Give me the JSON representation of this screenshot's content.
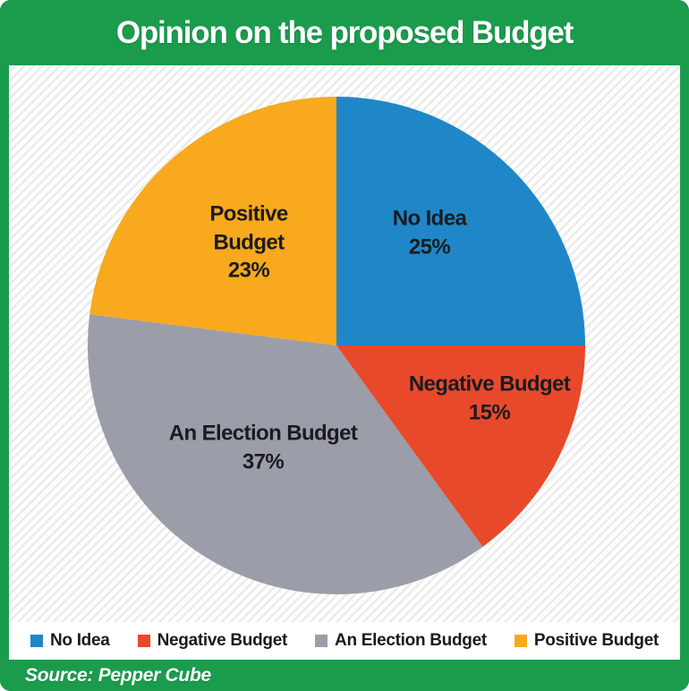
{
  "header": {
    "title": "Opinion on the proposed Budget"
  },
  "chart_data": {
    "type": "pie",
    "title": "Opinion on the proposed Budget",
    "categories": [
      "No Idea",
      "Negative Budget",
      "An Election Budget",
      "Positive Budget"
    ],
    "values": [
      25,
      15,
      37,
      23
    ],
    "units": "%",
    "colors": [
      "#1F87C8",
      "#E8492B",
      "#9B9DA8",
      "#F8A91D"
    ],
    "start_angle_deg": 0,
    "direction": "clockwise",
    "legend_position": "bottom",
    "source": "Source: Pepper Cube",
    "slice_labels": [
      {
        "name": "No Idea",
        "pct": "25%"
      },
      {
        "name": "Negative Budget",
        "pct": "15%"
      },
      {
        "name": "An Election Budget",
        "pct": "37%"
      },
      {
        "name": "Positive Budget",
        "pct": "23%"
      }
    ]
  },
  "legend": {
    "items": [
      {
        "label": "No Idea",
        "color": "#1F87C8"
      },
      {
        "label": "Negative Budget",
        "color": "#E8492B"
      },
      {
        "label": "An Election Budget",
        "color": "#9B9DA8"
      },
      {
        "label": "Positive Budget",
        "color": "#F8A91D"
      }
    ]
  },
  "footer": {
    "source_label": "Source: Pepper Cube"
  },
  "colors": {
    "brand_green": "#1B9C4D",
    "stripe": "#EBEBEB",
    "label_text": "#1A1B20",
    "title_text": "#FFFFFF"
  }
}
